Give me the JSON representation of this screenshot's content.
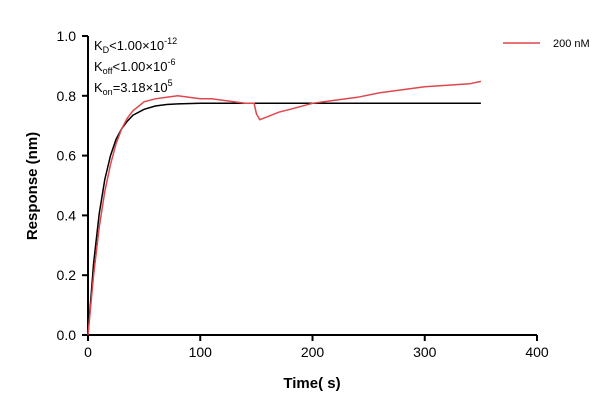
{
  "chart_data": {
    "type": "line",
    "xlabel": "Time( s)",
    "ylabel": "Response (nm)",
    "xlim": [
      0,
      400
    ],
    "ylim": [
      0,
      1.0
    ],
    "xticks": [
      "0",
      "100",
      "200",
      "300",
      "400"
    ],
    "yticks": [
      "0.0",
      "0.2",
      "0.4",
      "0.6",
      "0.8",
      "1.0"
    ],
    "grid": false,
    "legend_position": "top-right",
    "annotations": [
      {
        "main": "K",
        "sub": "D",
        "rest": "<1.00×10",
        "sup": "-12"
      },
      {
        "main": "K",
        "sub": "off",
        "rest": "<1.00×10",
        "sup": "-6"
      },
      {
        "main": "K",
        "sub": "on",
        "rest": "=3.18×10",
        "sup": "5"
      }
    ],
    "series": [
      {
        "name": "200 nM",
        "color": "#e0474c",
        "x": [
          0,
          5,
          10,
          15,
          20,
          25,
          30,
          35,
          40,
          50,
          60,
          70,
          80,
          90,
          100,
          110,
          120,
          130,
          140,
          148,
          150,
          153,
          160,
          170,
          180,
          190,
          200,
          210,
          220,
          240,
          260,
          280,
          300,
          320,
          340,
          350
        ],
        "y": [
          0,
          0.2,
          0.36,
          0.48,
          0.57,
          0.64,
          0.69,
          0.725,
          0.75,
          0.78,
          0.79,
          0.795,
          0.8,
          0.795,
          0.79,
          0.79,
          0.785,
          0.78,
          0.775,
          0.775,
          0.74,
          0.72,
          0.73,
          0.745,
          0.755,
          0.765,
          0.775,
          0.78,
          0.785,
          0.795,
          0.81,
          0.82,
          0.83,
          0.835,
          0.84,
          0.848
        ]
      },
      {
        "color": "#000000",
        "x": [
          0,
          5,
          10,
          15,
          20,
          25,
          30,
          35,
          40,
          50,
          60,
          70,
          80,
          100,
          150,
          200,
          250,
          300,
          350
        ],
        "y": [
          0,
          0.24,
          0.405,
          0.52,
          0.6,
          0.655,
          0.69,
          0.715,
          0.735,
          0.755,
          0.766,
          0.771,
          0.773,
          0.775,
          0.775,
          0.775,
          0.775,
          0.775,
          0.775
        ]
      }
    ]
  }
}
